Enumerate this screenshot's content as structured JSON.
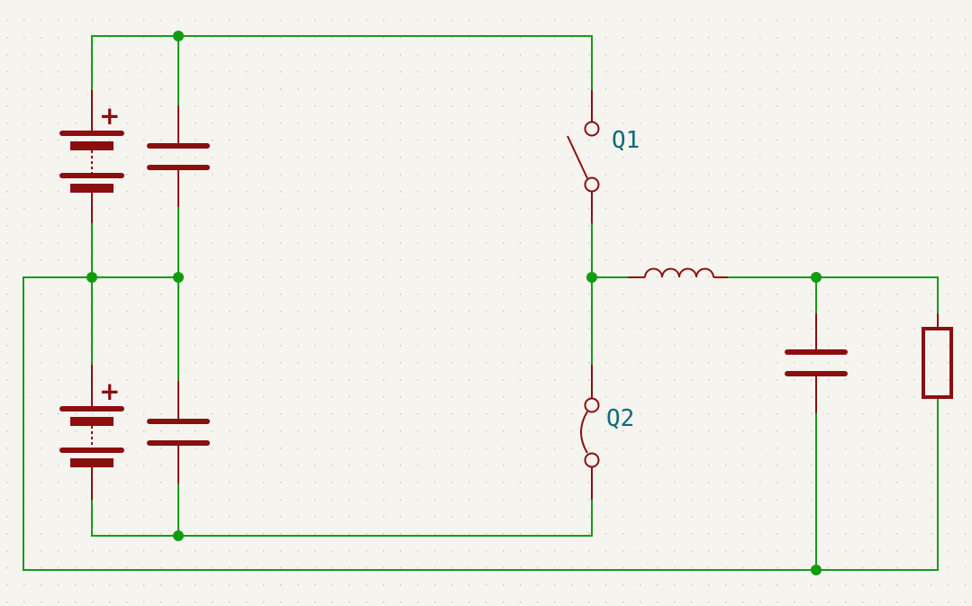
{
  "schematic": {
    "labels": {
      "switch_top": "Q1",
      "switch_bottom": "Q2",
      "battery_polarity": "+"
    },
    "colors": {
      "background": "#f5f4ef",
      "wire": "#1a9a1a",
      "junction": "#109c10",
      "component": "#8b0f0f",
      "reference_text": "#0f6a7a",
      "grid": "#c4c4c4"
    },
    "components": [
      {
        "type": "battery",
        "polarity": "+"
      },
      {
        "type": "battery",
        "polarity": "+"
      },
      {
        "type": "capacitor"
      },
      {
        "type": "capacitor"
      },
      {
        "type": "switch",
        "reference": "Q1",
        "state": "open"
      },
      {
        "type": "switch",
        "reference": "Q2"
      },
      {
        "type": "inductor"
      },
      {
        "type": "capacitor"
      },
      {
        "type": "resistor"
      }
    ]
  }
}
